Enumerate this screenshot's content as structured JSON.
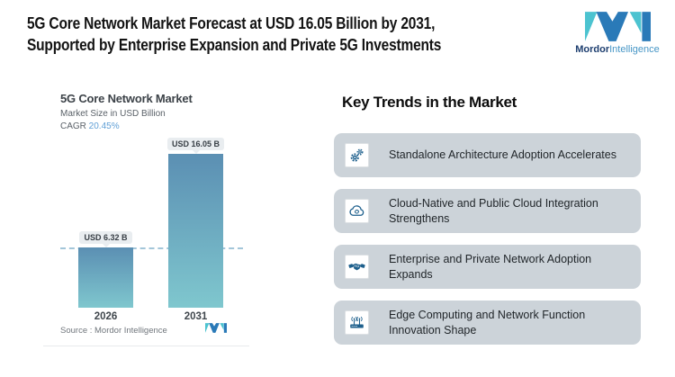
{
  "header": {
    "title": "5G Core Network Market Forecast at USD 16.05 Billion by 2031,\nSupported by Enterprise Expansion and Private 5G Investments",
    "brand_bold": "Mordor",
    "brand_light": "Intelligence"
  },
  "chart": {
    "title": "5G Core Network Market",
    "subtitle": "Market Size in USD Billion",
    "cagr_label": "CAGR ",
    "cagr_value": "20.45%",
    "source": "Source :  Mordor Intelligence"
  },
  "chart_data": {
    "type": "bar",
    "title": "5G Core Network Market",
    "ylabel": "Market Size in USD Billion",
    "cagr_percent": 20.45,
    "categories": [
      "2026",
      "2031"
    ],
    "values": [
      6.32,
      16.05
    ],
    "value_labels": [
      "USD 6.32 B",
      "USD 16.05 B"
    ],
    "ylim": [
      0,
      16.05
    ],
    "grid": false,
    "dashed_reference": 6.32,
    "bar_gradient_top": "#5b8fb3",
    "bar_gradient_bottom": "#7fc7ce"
  },
  "trends": {
    "heading": "Key Trends in the Market",
    "items": [
      {
        "icon": "gears-icon",
        "text": "Standalone Architecture Adoption Accelerates"
      },
      {
        "icon": "cloud-sync-icon",
        "text": "Cloud-Native and Public Cloud Integration\nStrengthens"
      },
      {
        "icon": "handshake-icon",
        "text": "Enterprise and Private Network Adoption\nExpands"
      },
      {
        "icon": "router-signal-icon",
        "text": "Edge Computing and Network Function\nInnovation Shape"
      }
    ]
  },
  "colors": {
    "brand_teal": "#4cc3d0",
    "brand_blue": "#2a7ab8",
    "icon_blue": "#1d5f8c",
    "card_bg": "#ccd3d9",
    "cagr_value_blue": "#5f9fd6",
    "dashed_line": "#a3c6d9",
    "tooltip_bg": "#e9edf0"
  }
}
